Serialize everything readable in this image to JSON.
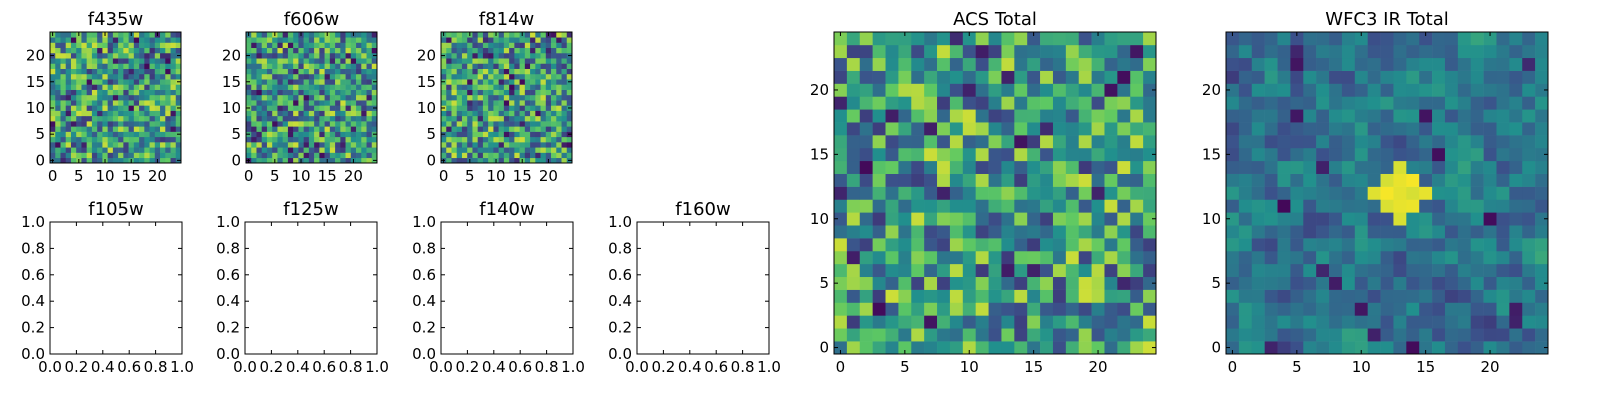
{
  "chart_data": [
    {
      "type": "heatmap",
      "title": "f435w",
      "grid_size": 25,
      "xlim": [
        -0.5,
        24.5
      ],
      "ylim": [
        -0.5,
        24.5
      ],
      "xticks": [
        0,
        5,
        10,
        15,
        20
      ],
      "yticks": [
        0,
        5,
        10,
        15,
        20
      ],
      "colormap": "viridis",
      "seed": 11,
      "smooth": 0,
      "dark_fraction": 0.05
    },
    {
      "type": "heatmap",
      "title": "f606w",
      "grid_size": 25,
      "xlim": [
        -0.5,
        24.5
      ],
      "ylim": [
        -0.5,
        24.5
      ],
      "xticks": [
        0,
        5,
        10,
        15,
        20
      ],
      "yticks": [
        0,
        5,
        10,
        15,
        20
      ],
      "colormap": "viridis",
      "seed": 23,
      "smooth": 0,
      "dark_fraction": 0.05
    },
    {
      "type": "heatmap",
      "title": "f814w",
      "grid_size": 25,
      "xlim": [
        -0.5,
        24.5
      ],
      "ylim": [
        -0.5,
        24.5
      ],
      "xticks": [
        0,
        5,
        10,
        15,
        20
      ],
      "yticks": [
        0,
        5,
        10,
        15,
        20
      ],
      "colormap": "viridis",
      "seed": 37,
      "smooth": 0,
      "dark_fraction": 0.06
    },
    {
      "type": "empty",
      "title": "f105w",
      "xlim": [
        0.0,
        1.0
      ],
      "ylim": [
        0.0,
        1.0
      ],
      "xticks": [
        "0.0",
        "0.2",
        "0.4",
        "0.6",
        "0.8",
        "1.0"
      ],
      "yticks": [
        "0.0",
        "0.2",
        "0.4",
        "0.6",
        "0.8",
        "1.0"
      ]
    },
    {
      "type": "empty",
      "title": "f125w",
      "xlim": [
        0.0,
        1.0
      ],
      "ylim": [
        0.0,
        1.0
      ],
      "xticks": [
        "0.0",
        "0.2",
        "0.4",
        "0.6",
        "0.8",
        "1.0"
      ],
      "yticks": [
        "0.0",
        "0.2",
        "0.4",
        "0.6",
        "0.8",
        "1.0"
      ]
    },
    {
      "type": "empty",
      "title": "f140w",
      "xlim": [
        0.0,
        1.0
      ],
      "ylim": [
        0.0,
        1.0
      ],
      "xticks": [
        "0.0",
        "0.2",
        "0.4",
        "0.6",
        "0.8",
        "1.0"
      ],
      "yticks": [
        "0.0",
        "0.2",
        "0.4",
        "0.6",
        "0.8",
        "1.0"
      ]
    },
    {
      "type": "empty",
      "title": "f160w",
      "xlim": [
        0.0,
        1.0
      ],
      "ylim": [
        0.0,
        1.0
      ],
      "xticks": [
        "0.0",
        "0.2",
        "0.4",
        "0.6",
        "0.8",
        "1.0"
      ],
      "yticks": [
        "0.0",
        "0.2",
        "0.4",
        "0.6",
        "0.8",
        "1.0"
      ]
    },
    {
      "type": "heatmap",
      "title": "ACS Total",
      "grid_size": 25,
      "xlim": [
        -0.5,
        24.5
      ],
      "ylim": [
        -0.5,
        24.5
      ],
      "xticks": [
        0,
        5,
        10,
        15,
        20
      ],
      "yticks": [
        0,
        5,
        10,
        15,
        20
      ],
      "colormap": "viridis",
      "seed": 51,
      "smooth": 0,
      "dark_fraction": 0.025
    },
    {
      "type": "heatmap",
      "title": "WFC3 IR Total",
      "grid_size": 25,
      "xlim": [
        -0.5,
        24.5
      ],
      "ylim": [
        -0.5,
        24.5
      ],
      "xticks": [
        0,
        5,
        10,
        15,
        20
      ],
      "yticks": [
        0,
        5,
        10,
        15,
        20
      ],
      "colormap": "viridis",
      "seed": 73,
      "smooth": 1,
      "dark_fraction": 0.02,
      "bright_spot": {
        "x": 13,
        "y": 12,
        "radius": 2
      }
    }
  ]
}
